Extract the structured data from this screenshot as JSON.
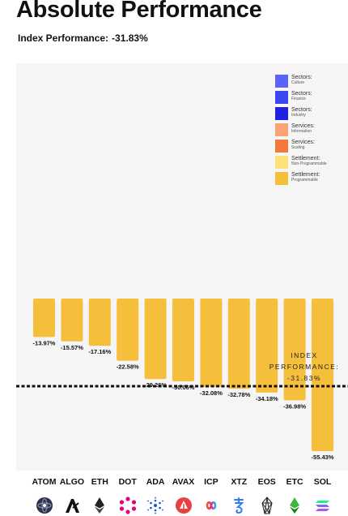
{
  "page": {
    "title": "Absolute Performance",
    "subtitle_label": "Index Performance:",
    "subtitle_value": "-31.83%"
  },
  "legend": [
    {
      "label": "Sectors:",
      "sub": "Culture",
      "color": "#5b63f5"
    },
    {
      "label": "Sectors:",
      "sub": "Finance",
      "color": "#3b45f0"
    },
    {
      "label": "Sectors:",
      "sub": "Industry",
      "color": "#2020e0"
    },
    {
      "label": "Services:",
      "sub": "Information",
      "color": "#f7a374"
    },
    {
      "label": "Services:",
      "sub": "Scaling",
      "color": "#f07a3c"
    },
    {
      "label": "Settlement:",
      "sub": "Non-Programmable",
      "color": "#fde07a"
    },
    {
      "label": "Settlement:",
      "sub": "Programmable",
      "color": "#f5bf3c"
    }
  ],
  "annotation": {
    "line1": "INDEX",
    "line2": "PERFORMANCE:",
    "line3": "-31.83%",
    "value": -31.83
  },
  "chart_data": {
    "type": "bar",
    "categories": [
      "ATOM",
      "ALGO",
      "ETH",
      "DOT",
      "ADA",
      "AVAX",
      "ICP",
      "XTZ",
      "EOS",
      "ETC",
      "SOL"
    ],
    "values": [
      -13.97,
      -15.57,
      -17.16,
      -22.58,
      -29.26,
      -30.06,
      -32.08,
      -32.78,
      -34.18,
      -36.98,
      -55.43
    ],
    "labels": [
      "-13.97%",
      "-15.57%",
      "-17.16%",
      "-22.58%",
      "-29.26%",
      "-30.06%",
      "-32.08%",
      "-32.78%",
      "-34.18%",
      "-36.98%",
      "-55.43%"
    ],
    "bar_color": "#f5bf3c",
    "reference_line": -31.83,
    "ylim": [
      -60,
      0
    ]
  },
  "icons": [
    "cosmos-icon",
    "algorand-icon",
    "ethereum-icon",
    "polkadot-icon",
    "cardano-icon",
    "avalanche-icon",
    "internet-computer-icon",
    "tezos-icon",
    "eos-icon",
    "ethereum-classic-icon",
    "solana-icon"
  ]
}
